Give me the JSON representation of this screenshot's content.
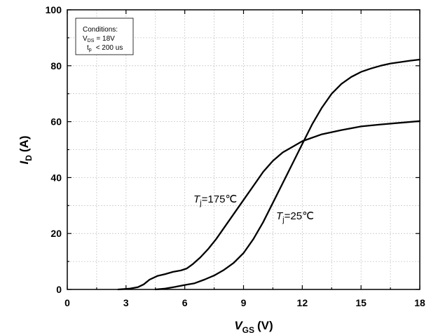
{
  "chart_data": {
    "type": "line",
    "title": "",
    "xlabel": {
      "main": "V",
      "sub": "GS",
      "unit": "(V)"
    },
    "ylabel": {
      "main": "I",
      "sub": "D",
      "unit": "(A)"
    },
    "xlim": [
      0,
      18
    ],
    "ylim": [
      0,
      100
    ],
    "xticks": [
      0,
      3,
      6,
      9,
      12,
      15,
      18
    ],
    "yticks": [
      0,
      20,
      40,
      60,
      80,
      100
    ],
    "grid": true,
    "conditions": {
      "title": "Conditions:",
      "vds": {
        "main": "V",
        "sub": "DS",
        "value": "=  18V"
      },
      "tp": {
        "main": "t",
        "sub": "p",
        "value": "< 200 us"
      }
    },
    "series": [
      {
        "name": "175",
        "label": {
          "main": "T",
          "sub": "j",
          "value": "=175℃"
        },
        "x": [
          2.6,
          3.2,
          3.6,
          3.9,
          4.2,
          4.6,
          5.0,
          5.4,
          5.8,
          6.1,
          6.4,
          6.8,
          7.2,
          7.6,
          8.0,
          8.5,
          9.0,
          9.5,
          10.0,
          10.5,
          11.0,
          11.5,
          12.0,
          13.0,
          14.0,
          15.0,
          16.0,
          17.0,
          18.0
        ],
        "y": [
          0,
          0.3,
          0.8,
          1.8,
          3.5,
          4.8,
          5.5,
          6.3,
          6.8,
          7.5,
          9.0,
          11.5,
          14.5,
          18.0,
          22.0,
          27.0,
          32.0,
          37.0,
          42.0,
          46.0,
          49.0,
          51.0,
          53.0,
          55.5,
          57.0,
          58.3,
          59.0,
          59.6,
          60.2
        ]
      },
      {
        "name": "25",
        "label": {
          "main": "T",
          "sub": "j",
          "value": "=25℃"
        },
        "x": [
          4.5,
          5.0,
          5.5,
          6.0,
          6.5,
          7.0,
          7.5,
          8.0,
          8.5,
          9.0,
          9.5,
          10.0,
          10.5,
          11.0,
          11.5,
          12.0,
          12.5,
          13.0,
          13.5,
          14.0,
          14.5,
          15.0,
          15.5,
          16.0,
          16.5,
          17.0,
          17.5,
          18.0
        ],
        "y": [
          0,
          0.3,
          0.9,
          1.6,
          2.2,
          3.5,
          5.0,
          7.0,
          9.5,
          13.0,
          18.0,
          24.0,
          31.0,
          38.0,
          45.0,
          52.0,
          59.0,
          65.0,
          70.0,
          73.5,
          76.0,
          77.8,
          79.0,
          80.0,
          80.8,
          81.3,
          81.8,
          82.2
        ]
      }
    ]
  }
}
